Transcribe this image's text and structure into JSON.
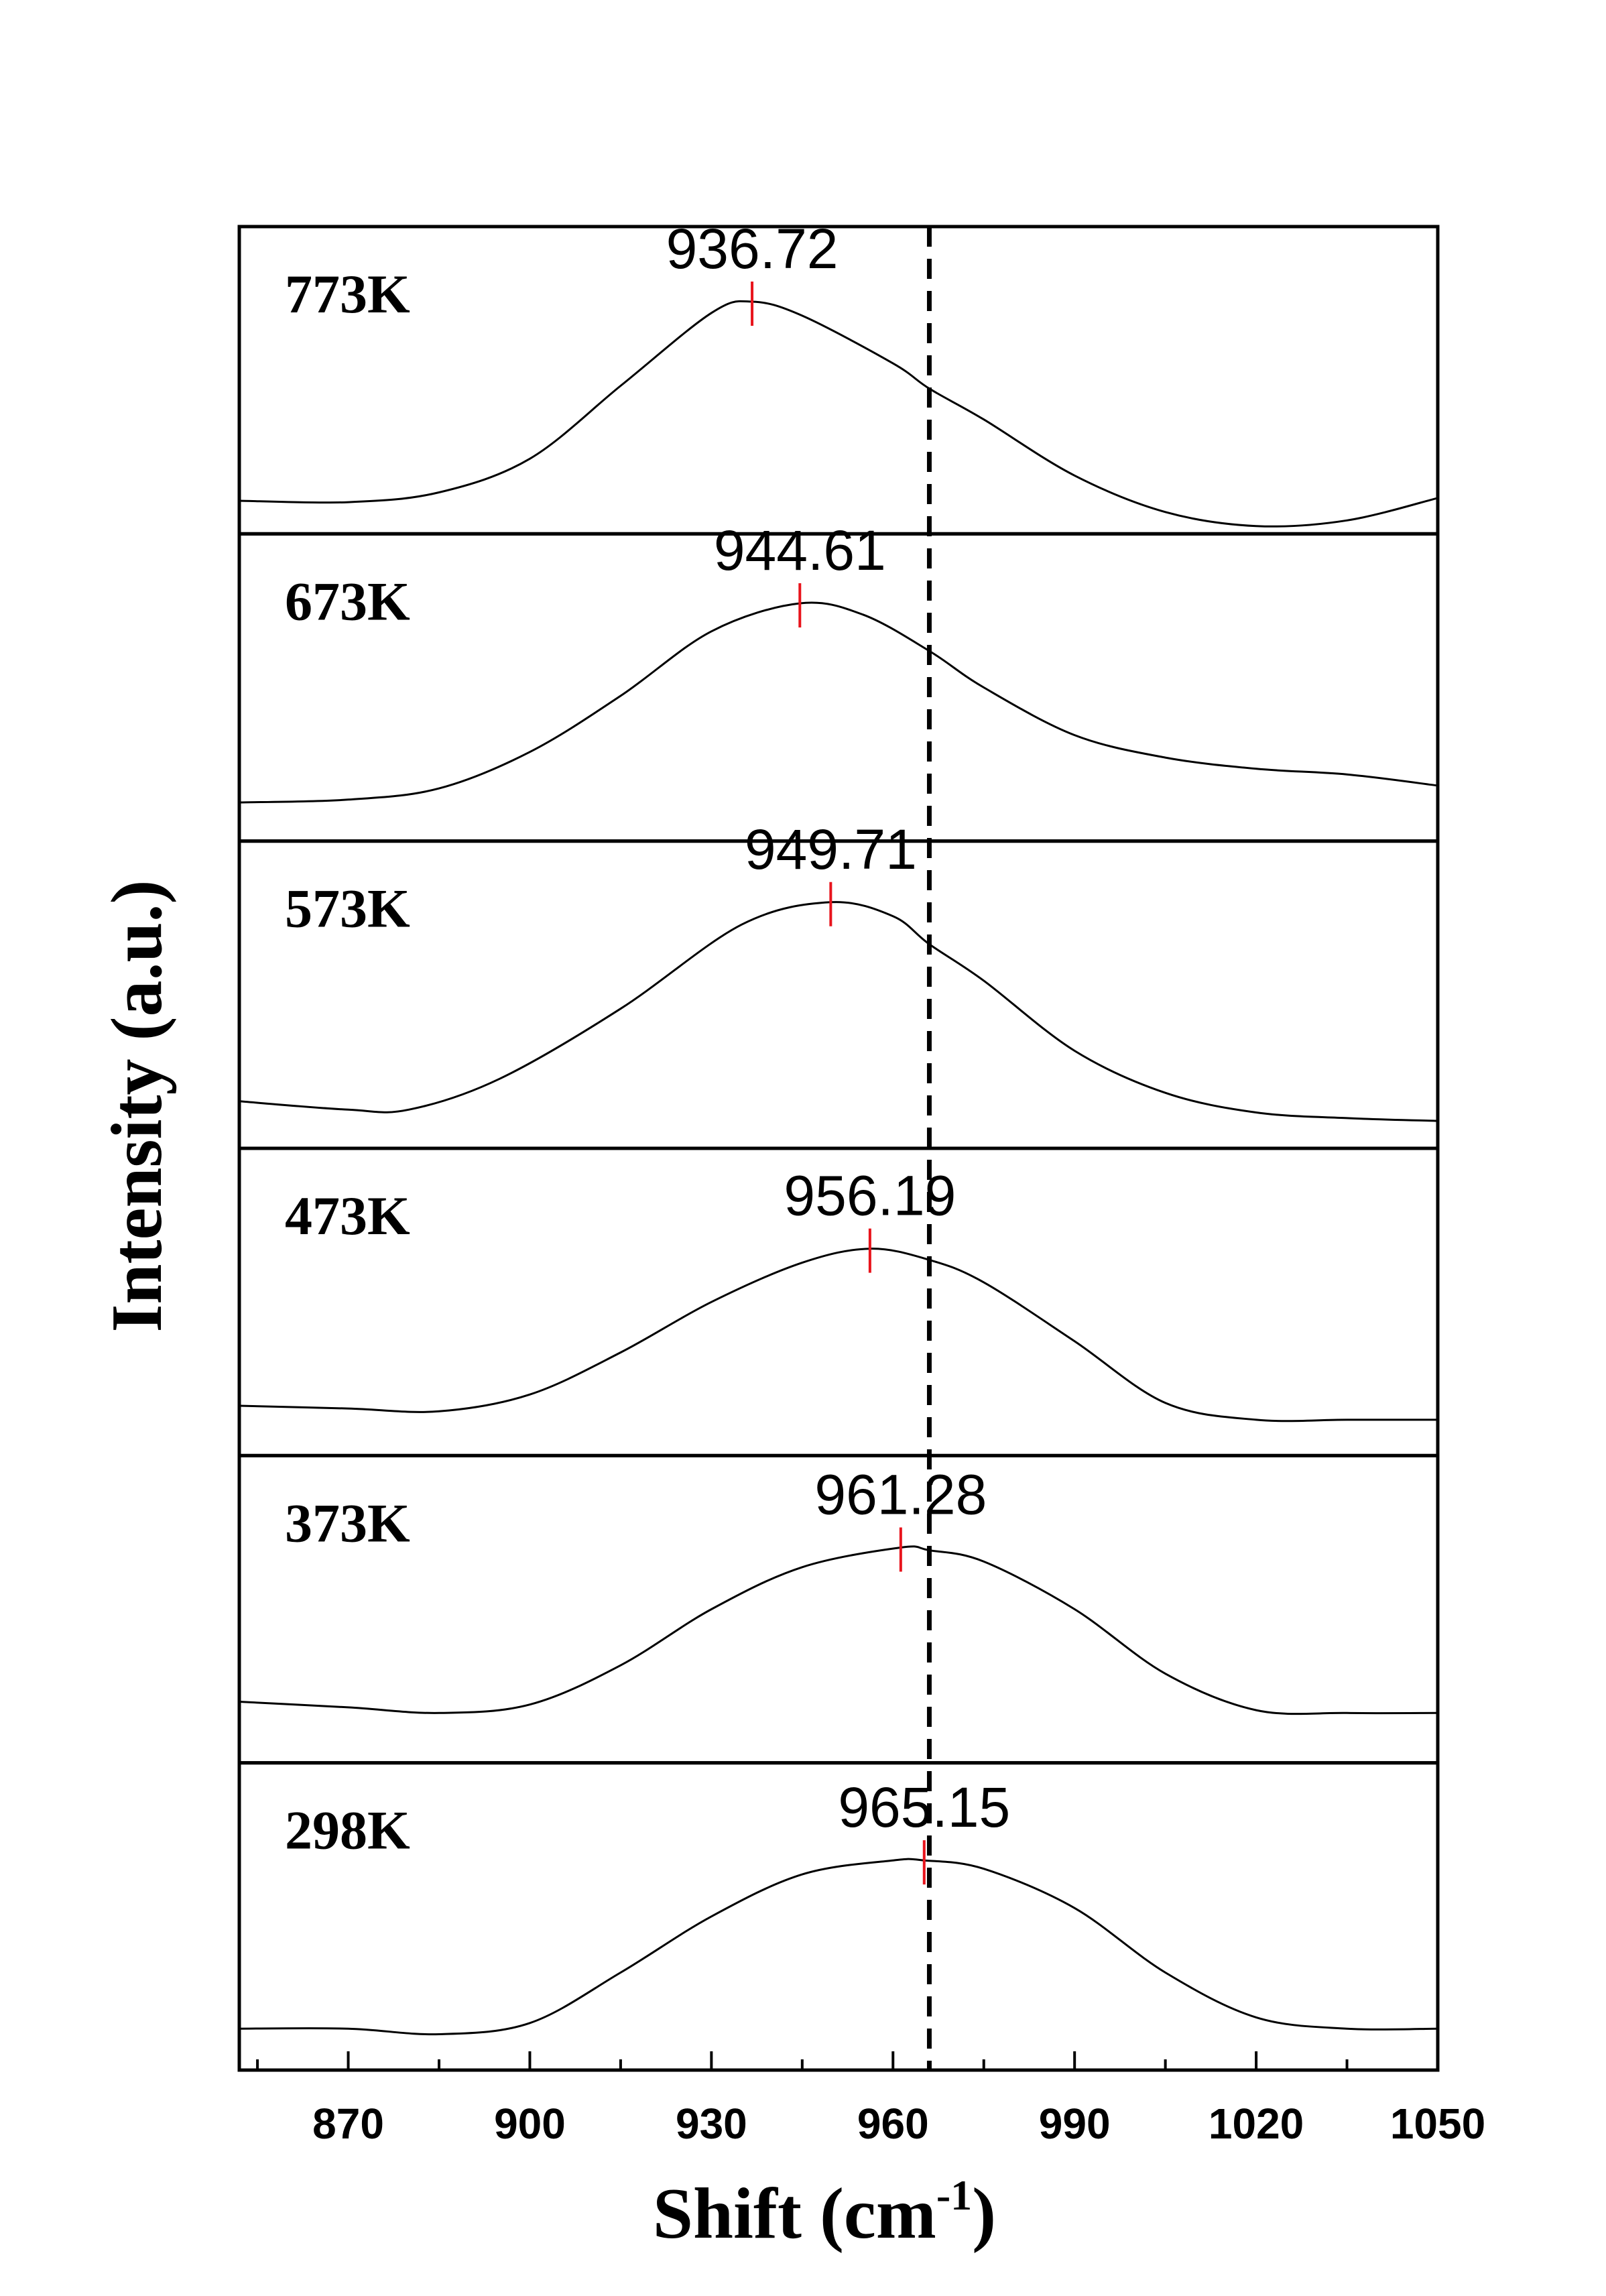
{
  "chart_data": {
    "type": "line",
    "layout": "stacked-panels",
    "xlabel": "Shift (cm",
    "xlabel_superscript": "-1",
    "xlabel_suffix": ")",
    "ylabel": "Intensity (a.u.)",
    "xlim": [
      852,
      1050
    ],
    "x_ticks": [
      870,
      900,
      930,
      960,
      990,
      1020,
      1050
    ],
    "x_minor_ticks": [
      855,
      885,
      915,
      945,
      975,
      1005,
      1035
    ],
    "reference_line": {
      "x": 966,
      "style": "dashed",
      "color": "#000000"
    },
    "peak_marker_color": "#e8141c",
    "line_color": "#000000",
    "panels": [
      {
        "label": "773K",
        "peak": 936.72,
        "peak_label": "936.72",
        "points": [
          [
            852,
            0.07
          ],
          [
            870,
            0.065
          ],
          [
            885,
            0.1
          ],
          [
            900,
            0.22
          ],
          [
            915,
            0.48
          ],
          [
            930,
            0.74
          ],
          [
            936.72,
            0.78
          ],
          [
            945,
            0.73
          ],
          [
            960,
            0.56
          ],
          [
            966,
            0.47
          ],
          [
            975,
            0.36
          ],
          [
            990,
            0.16
          ],
          [
            1005,
            0.03
          ],
          [
            1020,
            -0.02
          ],
          [
            1035,
            0.0
          ],
          [
            1050,
            0.08
          ]
        ]
      },
      {
        "label": "673K",
        "peak": 944.61,
        "peak_label": "944.61",
        "points": [
          [
            852,
            0.09
          ],
          [
            870,
            0.1
          ],
          [
            885,
            0.14
          ],
          [
            900,
            0.27
          ],
          [
            915,
            0.47
          ],
          [
            930,
            0.7
          ],
          [
            944.61,
            0.8
          ],
          [
            955,
            0.76
          ],
          [
            966,
            0.63
          ],
          [
            975,
            0.5
          ],
          [
            990,
            0.33
          ],
          [
            1005,
            0.25
          ],
          [
            1020,
            0.21
          ],
          [
            1035,
            0.19
          ],
          [
            1050,
            0.15
          ]
        ]
      },
      {
        "label": "573K",
        "peak": 949.71,
        "peak_label": "949.71",
        "points": [
          [
            852,
            0.12
          ],
          [
            870,
            0.09
          ],
          [
            880,
            0.09
          ],
          [
            895,
            0.2
          ],
          [
            915,
            0.45
          ],
          [
            935,
            0.75
          ],
          [
            949.71,
            0.83
          ],
          [
            960,
            0.78
          ],
          [
            966,
            0.68
          ],
          [
            975,
            0.55
          ],
          [
            990,
            0.3
          ],
          [
            1005,
            0.15
          ],
          [
            1020,
            0.08
          ],
          [
            1035,
            0.06
          ],
          [
            1050,
            0.05
          ]
        ]
      },
      {
        "label": "473K",
        "peak": 956.19,
        "peak_label": "956.19",
        "points": [
          [
            852,
            0.13
          ],
          [
            870,
            0.12
          ],
          [
            885,
            0.11
          ],
          [
            900,
            0.17
          ],
          [
            915,
            0.32
          ],
          [
            930,
            0.5
          ],
          [
            945,
            0.64
          ],
          [
            956.19,
            0.69
          ],
          [
            966,
            0.65
          ],
          [
            975,
            0.57
          ],
          [
            990,
            0.36
          ],
          [
            1005,
            0.14
          ],
          [
            1020,
            0.08
          ],
          [
            1035,
            0.08
          ],
          [
            1050,
            0.08
          ]
        ]
      },
      {
        "label": "373K",
        "peak": 961.28,
        "peak_label": "961.28",
        "points": [
          [
            852,
            0.17
          ],
          [
            870,
            0.15
          ],
          [
            885,
            0.13
          ],
          [
            900,
            0.16
          ],
          [
            915,
            0.3
          ],
          [
            930,
            0.5
          ],
          [
            945,
            0.65
          ],
          [
            961.28,
            0.72
          ],
          [
            966,
            0.71
          ],
          [
            975,
            0.67
          ],
          [
            990,
            0.5
          ],
          [
            1005,
            0.27
          ],
          [
            1020,
            0.14
          ],
          [
            1035,
            0.13
          ],
          [
            1050,
            0.13
          ]
        ]
      },
      {
        "label": "298K",
        "peak": 965.15,
        "peak_label": "965.15",
        "points": [
          [
            852,
            0.1
          ],
          [
            870,
            0.1
          ],
          [
            885,
            0.08
          ],
          [
            900,
            0.12
          ],
          [
            915,
            0.3
          ],
          [
            930,
            0.5
          ],
          [
            945,
            0.65
          ],
          [
            960,
            0.7
          ],
          [
            965.15,
            0.7
          ],
          [
            975,
            0.67
          ],
          [
            990,
            0.53
          ],
          [
            1005,
            0.3
          ],
          [
            1020,
            0.14
          ],
          [
            1035,
            0.1
          ],
          [
            1050,
            0.1
          ]
        ]
      }
    ]
  }
}
